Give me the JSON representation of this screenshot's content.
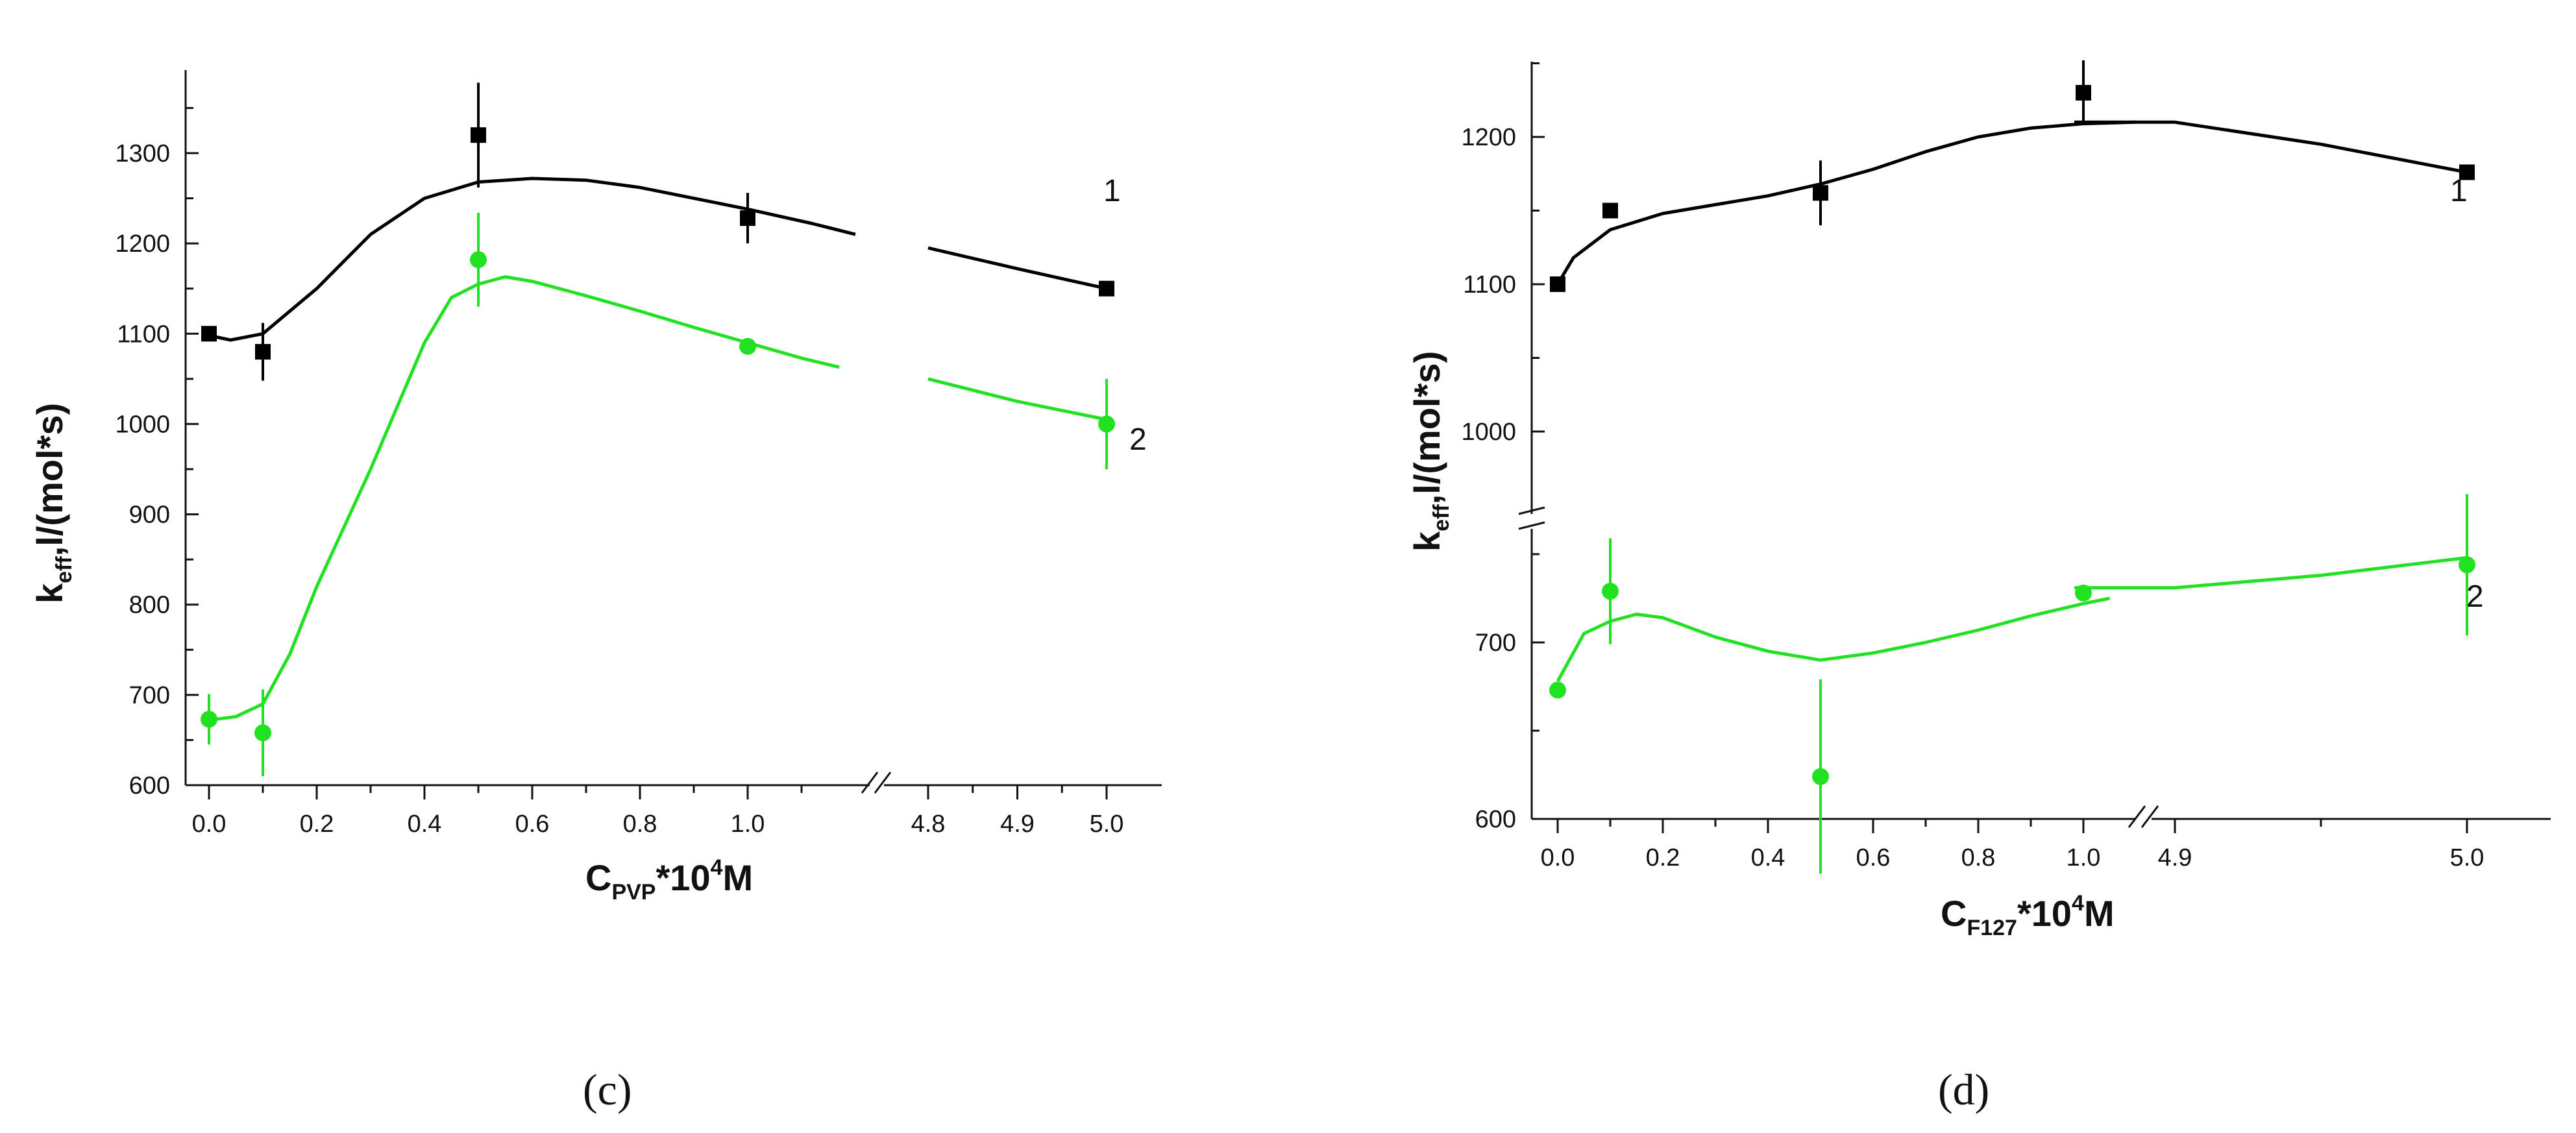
{
  "colors": {
    "series1": "#000000",
    "series2": "#22e022",
    "axis": "#111111"
  },
  "chart_data": [
    {
      "type": "line",
      "panel_label": "(c)",
      "ylabel": {
        "main": "k",
        "sub": "eff",
        "rest": ",l/(mol*s)"
      },
      "xlabel": {
        "main": "C",
        "sub": "PVP",
        "rest": "*10",
        "sup": "4",
        "end": "M"
      },
      "ylim": [
        600,
        1360
      ],
      "yticks": [
        "600",
        "700",
        "800",
        "900",
        "1000",
        "1100",
        "1200",
        "1300"
      ],
      "xticks": [
        "0.0",
        "0.2",
        "0.4",
        "0.6",
        "0.8",
        "1.0",
        "4.8",
        "4.9",
        "5.0"
      ],
      "axis_break_x": "between 1.0 and 4.8",
      "series": [
        {
          "name": "1",
          "label": "1",
          "points": [
            [
              0.0,
              1100
            ],
            [
              0.1,
              1080
            ],
            [
              0.5,
              1320
            ],
            [
              1.0,
              1228
            ],
            [
              5.0,
              1150
            ]
          ],
          "yerr": [
            0,
            32,
            58,
            28,
            0
          ],
          "fit": [
            [
              0.0,
              1098
            ],
            [
              0.04,
              1093
            ],
            [
              0.1,
              1100
            ],
            [
              0.2,
              1150
            ],
            [
              0.3,
              1210
            ],
            [
              0.4,
              1250
            ],
            [
              0.5,
              1268
            ],
            [
              0.6,
              1272
            ],
            [
              0.7,
              1270
            ],
            [
              0.8,
              1262
            ],
            [
              0.9,
              1250
            ],
            [
              1.0,
              1238
            ],
            [
              1.12,
              1222
            ],
            [
              1.2,
              1210
            ],
            [
              4.8,
              1195
            ],
            [
              4.9,
              1172
            ],
            [
              5.0,
              1150
            ]
          ]
        },
        {
          "name": "2",
          "label": "2",
          "points": [
            [
              0.0,
              673
            ],
            [
              0.1,
              658
            ],
            [
              0.5,
              1182
            ],
            [
              1.0,
              1086
            ],
            [
              5.0,
              1000
            ]
          ],
          "yerr": [
            28,
            48,
            52,
            0,
            50
          ],
          "fit": [
            [
              0.0,
              672
            ],
            [
              0.05,
              676
            ],
            [
              0.1,
              690
            ],
            [
              0.15,
              745
            ],
            [
              0.2,
              820
            ],
            [
              0.3,
              950
            ],
            [
              0.4,
              1090
            ],
            [
              0.45,
              1140
            ],
            [
              0.5,
              1155
            ],
            [
              0.55,
              1163
            ],
            [
              0.6,
              1158
            ],
            [
              0.7,
              1142
            ],
            [
              0.8,
              1125
            ],
            [
              0.9,
              1107
            ],
            [
              1.0,
              1090
            ],
            [
              1.1,
              1073
            ],
            [
              1.17,
              1063
            ],
            [
              4.8,
              1050
            ],
            [
              4.9,
              1025
            ],
            [
              5.0,
              1005
            ]
          ]
        }
      ]
    },
    {
      "type": "line",
      "panel_label": "(d)",
      "ylabel": {
        "main": "k",
        "sub": "eff",
        "rest": ",l/(mol*s)"
      },
      "xlabel": {
        "main": "C",
        "sub": "F127",
        "rest": "*10",
        "sup": "4",
        "end": "M"
      },
      "ylim_upper": [
        950,
        1250
      ],
      "ylim_lower": [
        600,
        760
      ],
      "yticks_upper": [
        "1000",
        "1100",
        "1200"
      ],
      "yticks_lower": [
        "600",
        "700"
      ],
      "xticks": [
        "0.0",
        "0.2",
        "0.4",
        "0.6",
        "0.8",
        "1.0",
        "4.9",
        "5.0"
      ],
      "axis_break_x": "between 1.0 and 4.9",
      "axis_break_y": "between 760 and 950",
      "series": [
        {
          "name": "1",
          "label": "1",
          "points": [
            [
              0.0,
              1100
            ],
            [
              0.1,
              1150
            ],
            [
              0.5,
              1162
            ],
            [
              1.0,
              1230
            ],
            [
              5.0,
              1176
            ]
          ],
          "yerr": [
            0,
            0,
            22,
            22,
            0
          ],
          "fit": [
            [
              0.0,
              1100
            ],
            [
              0.03,
              1118
            ],
            [
              0.1,
              1137
            ],
            [
              0.2,
              1148
            ],
            [
              0.3,
              1154
            ],
            [
              0.4,
              1160
            ],
            [
              0.5,
              1168
            ],
            [
              0.6,
              1178
            ],
            [
              0.7,
              1190
            ],
            [
              0.8,
              1200
            ],
            [
              0.9,
              1206
            ],
            [
              1.0,
              1209
            ],
            [
              1.1,
              1210
            ],
            [
              4.9,
              1210
            ],
            [
              4.95,
              1195
            ],
            [
              5.0,
              1176
            ]
          ]
        },
        {
          "name": "2",
          "label": "2",
          "points": [
            [
              0.0,
              673
            ],
            [
              0.1,
              729
            ],
            [
              0.5,
              624
            ],
            [
              1.0,
              728
            ],
            [
              5.0,
              744
            ]
          ],
          "yerr": [
            0,
            30,
            55,
            0,
            40
          ],
          "fit": [
            [
              0.0,
              678
            ],
            [
              0.05,
              705
            ],
            [
              0.1,
              712
            ],
            [
              0.15,
              716
            ],
            [
              0.2,
              714
            ],
            [
              0.3,
              703
            ],
            [
              0.4,
              695
            ],
            [
              0.5,
              690
            ],
            [
              0.6,
              694
            ],
            [
              0.7,
              700
            ],
            [
              0.8,
              707
            ],
            [
              0.9,
              715
            ],
            [
              1.0,
              722
            ],
            [
              1.05,
              725
            ],
            [
              4.9,
              731
            ],
            [
              4.95,
              738
            ],
            [
              5.0,
              748
            ]
          ]
        }
      ]
    }
  ]
}
